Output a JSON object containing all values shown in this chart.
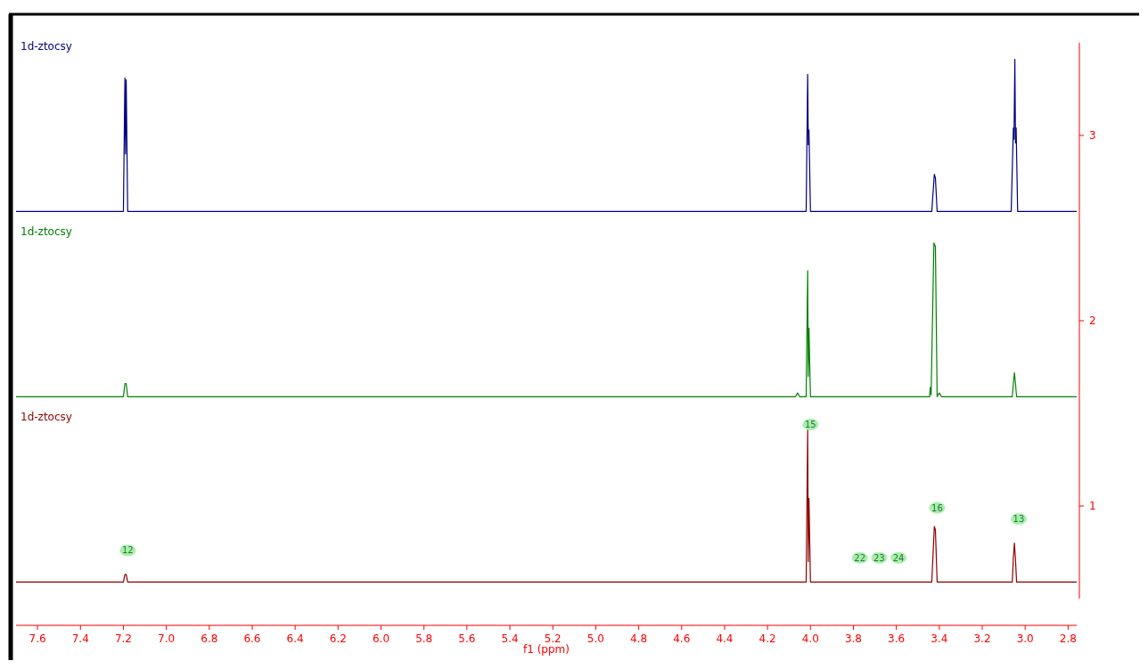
{
  "chart_data": {
    "type": "line",
    "xlabel": "f1 (ppm)",
    "xlim": [
      7.7,
      2.76
    ],
    "xticks": [
      7.6,
      7.4,
      7.2,
      {
        "value": 7,
        "label": "7.0"
      },
      6.8,
      6.6,
      6.4,
      6.2,
      {
        "value": 6,
        "label": "6.0"
      },
      5.8,
      5.6,
      5.4,
      5.2,
      {
        "value": 5,
        "label": "5.0"
      },
      4.8,
      4.6,
      4.4,
      4.2,
      {
        "value": 4,
        "label": "4.0"
      },
      3.8,
      3.6,
      3.4,
      3.2,
      {
        "value": 3,
        "label": "3.0"
      },
      2.8
    ],
    "ylim": [
      0.5,
      3.5
    ],
    "yticks": [
      1,
      2,
      3
    ],
    "grid": false,
    "series": [
      {
        "name": "1d-ztocsy",
        "color": "#000080",
        "x": [
          7.7,
          7.2,
          7.193,
          7.19,
          7.187,
          7.18,
          4.02,
          4.013,
          4.01,
          4.007,
          4.0,
          3.435,
          3.423,
          3.418,
          3.41,
          3.065,
          3.055,
          3.052,
          3.048,
          3.045,
          3.042,
          3.035,
          2.76
        ],
        "values": [
          2.59,
          2.59,
          3.31,
          2.9,
          3.3,
          2.59,
          2.59,
          3.33,
          2.95,
          3.03,
          2.59,
          2.59,
          2.79,
          2.77,
          2.59,
          2.59,
          3.04,
          2.98,
          3.41,
          2.96,
          3.04,
          2.59,
          2.59
        ]
      },
      {
        "name": "1d-ztocsy",
        "color": "#008000",
        "x": [
          7.7,
          7.2,
          7.193,
          7.187,
          7.18,
          4.07,
          4.06,
          4.05,
          4.02,
          4.013,
          4.01,
          4.007,
          4.0,
          3.445,
          3.442,
          3.438,
          3.425,
          3.418,
          3.41,
          3.4,
          3.39,
          3.06,
          3.055,
          3.05,
          3.045,
          3.04,
          2.76
        ],
        "values": [
          1.59,
          1.59,
          1.66,
          1.66,
          1.59,
          1.59,
          1.61,
          1.59,
          1.59,
          2.27,
          1.7,
          1.96,
          1.59,
          1.59,
          1.64,
          1.6,
          2.42,
          2.4,
          1.59,
          1.61,
          1.59,
          1.59,
          1.66,
          1.72,
          1.66,
          1.59,
          1.59
        ]
      },
      {
        "name": "1d-ztocsy",
        "color": "#8b0000",
        "x": [
          7.7,
          7.2,
          7.193,
          7.187,
          7.18,
          4.02,
          4.013,
          4.01,
          4.007,
          4.0,
          3.435,
          3.423,
          3.418,
          3.41,
          3.06,
          3.055,
          3.05,
          3.045,
          3.04,
          2.76
        ],
        "values": [
          0.59,
          0.59,
          0.63,
          0.63,
          0.59,
          0.59,
          1.41,
          0.7,
          1.04,
          0.59,
          0.59,
          0.89,
          0.87,
          0.59,
          0.59,
          0.72,
          0.8,
          0.71,
          0.59,
          0.59
        ]
      }
    ],
    "annotations": [
      {
        "text": "12",
        "x": 7.18,
        "y": 0.76
      },
      {
        "text": "15",
        "x": 4.0,
        "y": 1.44
      },
      {
        "text": "16",
        "x": 3.41,
        "y": 0.99
      },
      {
        "text": "13",
        "x": 3.03,
        "y": 0.93
      },
      {
        "text": "22",
        "x": 3.77,
        "y": 0.72
      },
      {
        "text": "23",
        "x": 3.68,
        "y": 0.72
      },
      {
        "text": "24",
        "x": 3.59,
        "y": 0.72
      }
    ]
  }
}
